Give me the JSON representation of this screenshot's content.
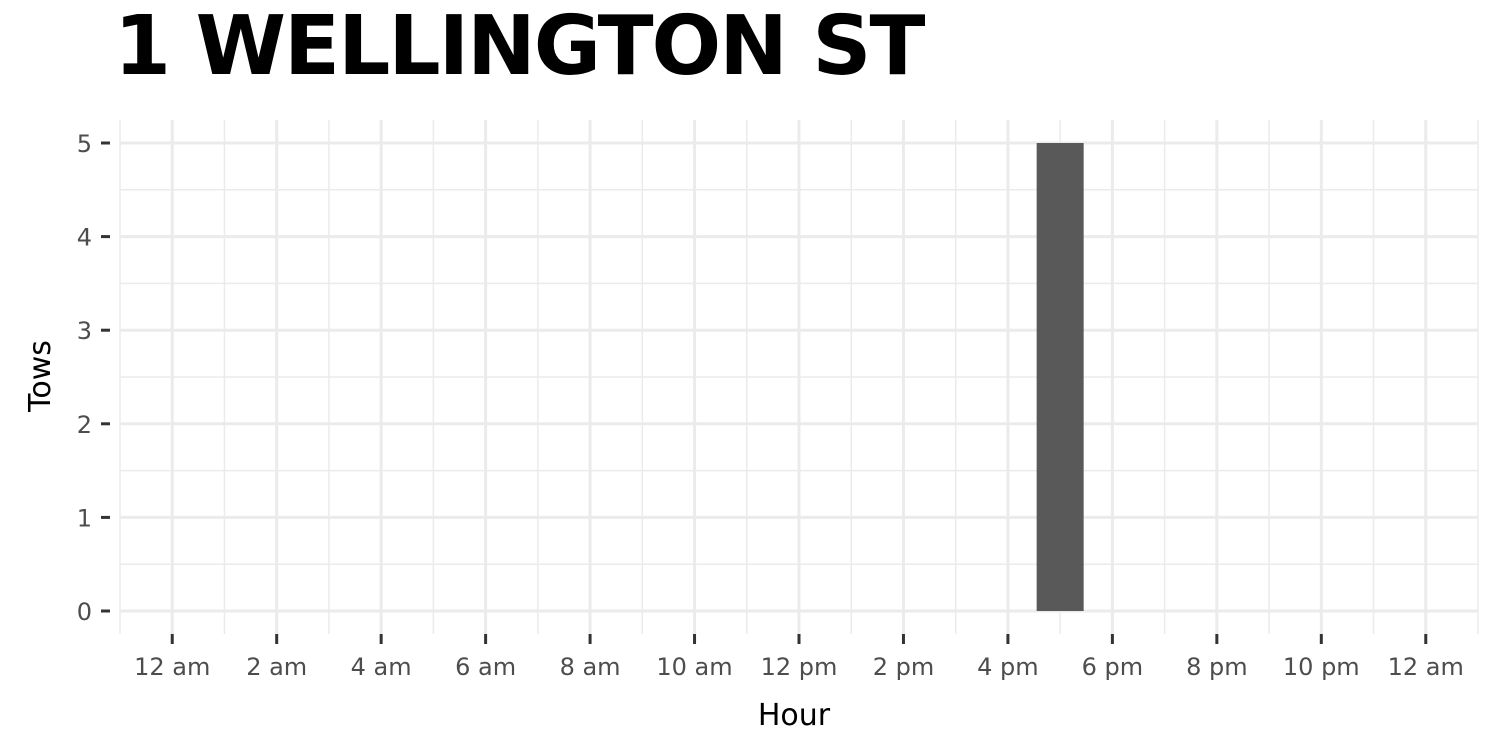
{
  "chart_data": {
    "type": "bar",
    "title": "1 WELLINGTON ST",
    "xlabel": "Hour",
    "ylabel": "Tows",
    "x_tick_labels": [
      "12 am",
      "2 am",
      "4 am",
      "6 am",
      "8 am",
      "10 am",
      "12 pm",
      "2 pm",
      "4 pm",
      "6 pm",
      "8 pm",
      "10 pm",
      "12 am"
    ],
    "x_ticks_hours": [
      0,
      2,
      4,
      6,
      8,
      10,
      12,
      14,
      16,
      18,
      20,
      22,
      24
    ],
    "y_ticks": [
      0,
      1,
      2,
      3,
      4,
      5
    ],
    "xlim": [
      -1,
      25
    ],
    "ylim": [
      0,
      5
    ],
    "grid": true,
    "bar_color": "#595959",
    "bars": [
      {
        "hour": 17,
        "value": 5
      }
    ]
  }
}
